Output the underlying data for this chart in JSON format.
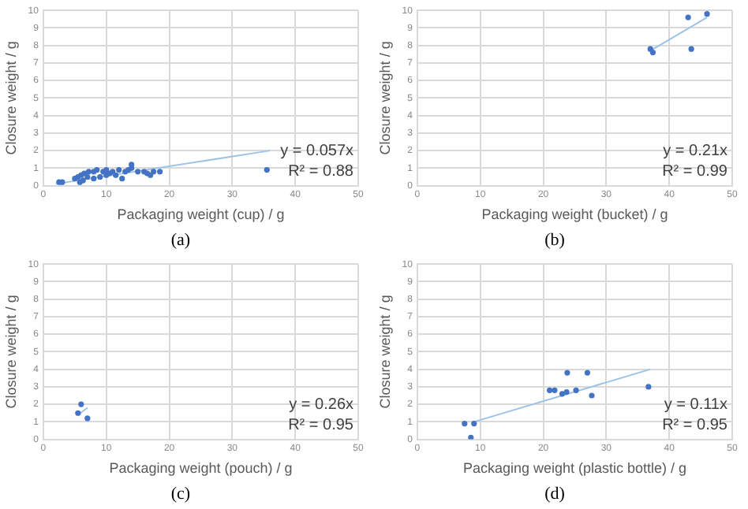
{
  "chart_data": [
    {
      "type": "scatter",
      "title": "(a)",
      "xlabel": "Packaging weight (cup) / g",
      "ylabel": "Closure weight / g",
      "xlim": [
        0,
        50
      ],
      "xticks": [
        0,
        10,
        20,
        30,
        40,
        50
      ],
      "ylim": [
        0,
        10
      ],
      "yticks": [
        0,
        1,
        2,
        3,
        4,
        5,
        6,
        7,
        8,
        9,
        10
      ],
      "grid": true,
      "legend": false,
      "marker": "circle",
      "annotations": [
        "y = 0.057x",
        "R² = 0.88"
      ],
      "series": [
        {
          "color": "#4472c4",
          "x": [
            2.5,
            3,
            5,
            5.5,
            5.8,
            6,
            6.3,
            6.5,
            7,
            7.2,
            8,
            8,
            8.5,
            9,
            9.5,
            10,
            10,
            10.5,
            11,
            11.5,
            12,
            12.5,
            13,
            13.5,
            14,
            14,
            15,
            16,
            16.5,
            17,
            17.5,
            18.5,
            35.5
          ],
          "values": [
            0.2,
            0.2,
            0.4,
            0.5,
            0.2,
            0.6,
            0.3,
            0.7,
            0.5,
            0.8,
            0.8,
            0.4,
            0.9,
            0.5,
            0.8,
            0.9,
            0.6,
            0.7,
            0.8,
            0.6,
            0.9,
            0.4,
            0.8,
            0.9,
            1.2,
            1.0,
            0.8,
            0.8,
            0.7,
            0.6,
            0.8,
            0.8,
            0.9
          ]
        },
        {
          "type": "line",
          "color": "#9dc3e6",
          "marker": "none",
          "x": [
            2,
            36
          ],
          "values": [
            0.1,
            2.0
          ]
        }
      ]
    },
    {
      "type": "scatter",
      "title": "(b)",
      "xlabel": "Packaging weight (bucket) / g",
      "ylabel": "Closure weight / g",
      "xlim": [
        0,
        50
      ],
      "xticks": [
        0,
        10,
        20,
        30,
        40,
        50
      ],
      "ylim": [
        0,
        10
      ],
      "yticks": [
        0,
        1,
        2,
        3,
        4,
        5,
        6,
        7,
        8,
        9,
        10
      ],
      "grid": true,
      "legend": false,
      "marker": "circle",
      "annotations": [
        "y = 0.21x",
        "R² = 0.99"
      ],
      "series": [
        {
          "color": "#4472c4",
          "x": [
            37,
            37.4,
            43,
            43.5,
            46
          ],
          "values": [
            7.8,
            7.6,
            9.6,
            7.8,
            9.8
          ]
        },
        {
          "type": "line",
          "color": "#9dc3e6",
          "marker": "none",
          "x": [
            37,
            46
          ],
          "values": [
            7.7,
            9.6
          ]
        }
      ]
    },
    {
      "type": "scatter",
      "title": "(c)",
      "xlabel": "Packaging weight (pouch) / g",
      "ylabel": "Closure weight / g",
      "xlim": [
        0,
        50
      ],
      "xticks": [
        0,
        10,
        20,
        30,
        40,
        50
      ],
      "ylim": [
        0,
        10
      ],
      "yticks": [
        0,
        1,
        2,
        3,
        4,
        5,
        6,
        7,
        8,
        9,
        10
      ],
      "grid": true,
      "legend": false,
      "marker": "circle",
      "annotations": [
        "y = 0.26x",
        "R² = 0.95"
      ],
      "series": [
        {
          "color": "#4472c4",
          "x": [
            5.5,
            6,
            7
          ],
          "values": [
            1.5,
            2.0,
            1.2
          ]
        },
        {
          "type": "line",
          "color": "#9dc3e6",
          "marker": "none",
          "x": [
            5.5,
            7
          ],
          "values": [
            1.4,
            1.8
          ]
        }
      ]
    },
    {
      "type": "scatter",
      "title": "(d)",
      "xlabel": "Packaging weight (plastic bottle) / g",
      "ylabel": "Closure weight / g",
      "xlim": [
        0,
        50
      ],
      "xticks": [
        0,
        10,
        20,
        30,
        40,
        50
      ],
      "ylim": [
        0,
        10
      ],
      "yticks": [
        0,
        1,
        2,
        3,
        4,
        5,
        6,
        7,
        8,
        9,
        10
      ],
      "grid": true,
      "legend": false,
      "marker": "circle",
      "annotations": [
        "y = 0.11x",
        "R² = 0.95"
      ],
      "series": [
        {
          "color": "#4472c4",
          "x": [
            7.5,
            8.5,
            9,
            21,
            21.8,
            23,
            23.7,
            23.8,
            25.2,
            27,
            27.7,
            36.7
          ],
          "values": [
            0.9,
            0.1,
            0.9,
            2.8,
            2.8,
            2.6,
            2.7,
            3.8,
            2.8,
            3.8,
            2.5,
            3.0
          ]
        },
        {
          "type": "line",
          "color": "#9dc3e6",
          "marker": "none",
          "x": [
            9,
            37
          ],
          "values": [
            1.0,
            4.0
          ]
        }
      ]
    }
  ]
}
